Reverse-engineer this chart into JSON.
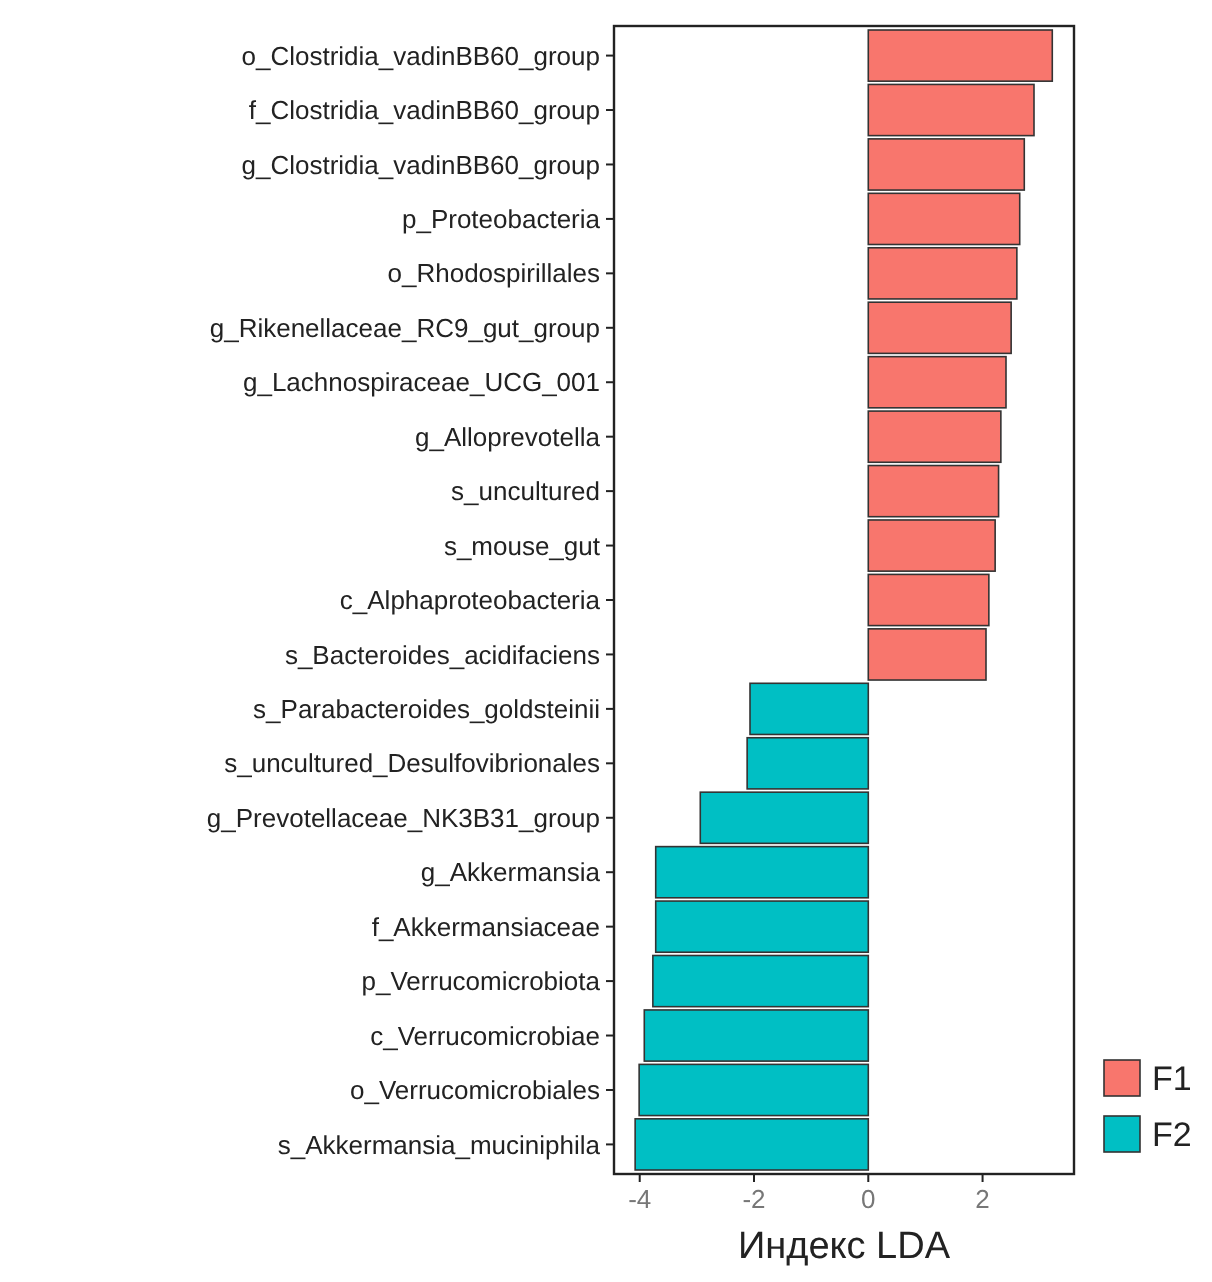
{
  "chart_data": {
    "type": "bar",
    "orientation": "horizontal",
    "xlabel": "Индекс LDA",
    "categories": [
      "o_Clostridia_vadinBB60_group",
      "f_Clostridia_vadinBB60_group",
      "g_Clostridia_vadinBB60_group",
      "p_Proteobacteria",
      "o_Rhodospirillales",
      "g_Rikenellaceae_RC9_gut_group",
      "g_Lachnospiraceae_UCG_001",
      "g_Alloprevotella",
      "s_uncultured",
      "s_mouse_gut",
      "c_Alphaproteobacteria",
      "s_Bacteroides_acidifaciens",
      "s_Parabacteroides_goldsteinii",
      "s_uncultured_Desulfovibrionales",
      "g_Prevotellaceae_NK3B31_group",
      "g_Akkermansia",
      "f_Akkermansiaceae",
      "p_Verrucomicrobiota",
      "c_Verrucomicrobiae",
      "o_Verrucomicrobiales",
      "s_Akkermansia_muciniphila"
    ],
    "series": [
      {
        "name": "F1",
        "color": "#f8766d",
        "values": [
          3.22,
          2.9,
          2.73,
          2.65,
          2.6,
          2.5,
          2.41,
          2.32,
          2.28,
          2.22,
          2.11,
          2.06,
          null,
          null,
          null,
          null,
          null,
          null,
          null,
          null,
          null
        ]
      },
      {
        "name": "F2",
        "color": "#00bfc4",
        "values": [
          null,
          null,
          null,
          null,
          null,
          null,
          null,
          null,
          null,
          null,
          null,
          null,
          -2.07,
          -2.12,
          -2.94,
          -3.72,
          -3.72,
          -3.77,
          -3.92,
          -4.01,
          -4.08
        ]
      }
    ],
    "xlim": [
      -4.45,
      3.6
    ],
    "xticks": [
      -4,
      -2,
      0,
      2
    ],
    "legend": "bottom right"
  }
}
